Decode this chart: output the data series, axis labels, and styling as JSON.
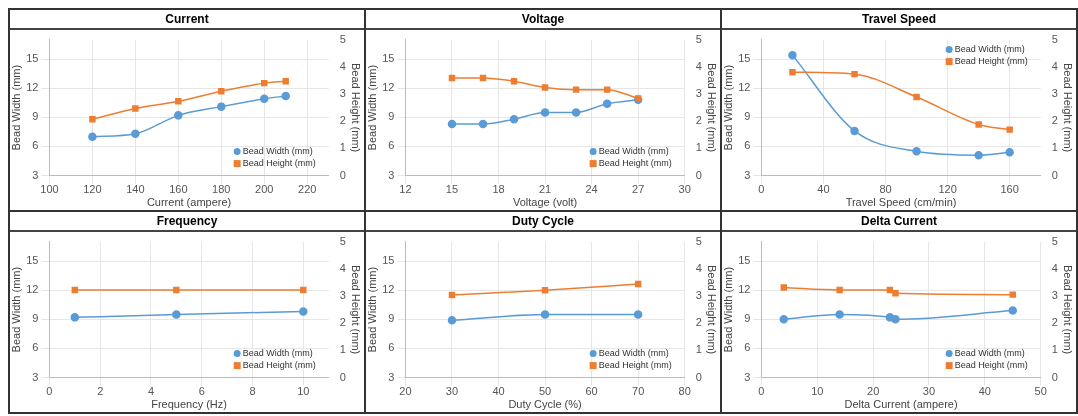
{
  "chart_data": [
    {
      "type": "line",
      "title": "Current",
      "xlabel": "Current (ampere)",
      "ylabel": "Bead Width (mm)",
      "y2label": "Bead Height (mm)",
      "x": [
        120,
        140,
        160,
        180,
        200,
        210
      ],
      "xlim": [
        100,
        230
      ],
      "xticks": [
        100,
        120,
        140,
        160,
        180,
        200,
        220
      ],
      "ylim": [
        3,
        17
      ],
      "yticks": [
        3,
        6,
        9,
        12,
        15
      ],
      "y2lim": [
        0,
        5
      ],
      "y2ticks": [
        0,
        1,
        2,
        3,
        4,
        5
      ],
      "grid": true,
      "legend": "bottom right",
      "series": [
        {
          "name": "Bead Width (mm)",
          "color": "#5b9bd5",
          "marker": "circle",
          "values": [
            7.0,
            7.3,
            9.2,
            10.1,
            10.9,
            11.2
          ]
        },
        {
          "name": "Bead Height (mm)",
          "color": "#ed7d31",
          "marker": "square",
          "axis": "y2",
          "values": [
            2.07,
            2.47,
            2.73,
            3.1,
            3.4,
            3.47
          ]
        }
      ]
    },
    {
      "type": "line",
      "title": "Voltage",
      "xlabel": "Voltage (volt)",
      "ylabel": "Bead Width (mm)",
      "y2label": "Bead Height (mm)",
      "x": [
        15,
        17,
        19,
        21,
        23,
        25,
        27
      ],
      "xlim": [
        12,
        30
      ],
      "xticks": [
        12,
        15,
        18,
        21,
        24,
        27,
        30
      ],
      "ylim": [
        3,
        17
      ],
      "yticks": [
        3,
        6,
        9,
        12,
        15
      ],
      "y2lim": [
        0,
        5
      ],
      "y2ticks": [
        0,
        1,
        2,
        3,
        4,
        5
      ],
      "grid": true,
      "legend": "bottom right",
      "series": [
        {
          "name": "Bead Width (mm)",
          "color": "#5b9bd5",
          "marker": "circle",
          "values": [
            8.3,
            8.3,
            8.8,
            9.5,
            9.5,
            10.4,
            10.8
          ]
        },
        {
          "name": "Bead Height (mm)",
          "color": "#ed7d31",
          "marker": "square",
          "axis": "y2",
          "values": [
            3.59,
            3.59,
            3.47,
            3.24,
            3.16,
            3.16,
            2.84
          ]
        }
      ]
    },
    {
      "type": "line",
      "title": "Travel Speed",
      "xlabel": "Travel Speed (cm/min)",
      "ylabel": "Bead Width (mm)",
      "y2label": "Bead Height (mm)",
      "x": [
        20,
        60,
        100,
        140,
        160
      ],
      "xlim": [
        0,
        180
      ],
      "xticks": [
        0,
        40,
        80,
        120,
        160
      ],
      "ylim": [
        3,
        17
      ],
      "yticks": [
        3,
        6,
        9,
        12,
        15
      ],
      "y2lim": [
        0,
        5
      ],
      "y2ticks": [
        0,
        1,
        2,
        3,
        4,
        5
      ],
      "grid": true,
      "legend": "top right",
      "series": [
        {
          "name": "Bead Width (mm)",
          "color": "#5b9bd5",
          "marker": "circle",
          "values": [
            15.4,
            7.6,
            5.5,
            5.1,
            5.4
          ]
        },
        {
          "name": "Bead Height (mm)",
          "color": "#ed7d31",
          "marker": "square",
          "axis": "y2",
          "values": [
            3.8,
            3.73,
            2.89,
            1.88,
            1.69
          ]
        }
      ]
    },
    {
      "type": "line",
      "title": "Frequency",
      "xlabel": "Frequency (Hz)",
      "ylabel": "Bead Width (mm)",
      "y2label": "Bead Height (mm)",
      "x": [
        1,
        5,
        10
      ],
      "xlim": [
        0,
        11
      ],
      "xticks": [
        0,
        2,
        4,
        6,
        8,
        10
      ],
      "ylim": [
        3,
        17
      ],
      "yticks": [
        3,
        6,
        9,
        12,
        15
      ],
      "y2lim": [
        0,
        5
      ],
      "y2ticks": [
        0,
        1,
        2,
        3,
        4,
        5
      ],
      "grid": true,
      "legend": "bottom right",
      "series": [
        {
          "name": "Bead Width (mm)",
          "color": "#5b9bd5",
          "marker": "circle",
          "values": [
            9.2,
            9.5,
            9.8
          ]
        },
        {
          "name": "Bead Height (mm)",
          "color": "#ed7d31",
          "marker": "square",
          "axis": "y2",
          "values": [
            3.22,
            3.22,
            3.22
          ]
        }
      ]
    },
    {
      "type": "line",
      "title": "Duty Cycle",
      "xlabel": "Duty Cycle (%)",
      "ylabel": "Bead Width (mm)",
      "y2label": "Bead Height (mm)",
      "x": [
        30,
        50,
        70
      ],
      "xlim": [
        20,
        80
      ],
      "xticks": [
        20,
        30,
        40,
        50,
        60,
        70,
        80
      ],
      "ylim": [
        3,
        17
      ],
      "yticks": [
        3,
        6,
        9,
        12,
        15
      ],
      "y2lim": [
        0,
        5
      ],
      "y2ticks": [
        0,
        1,
        2,
        3,
        4,
        5
      ],
      "grid": true,
      "legend": "bottom right",
      "series": [
        {
          "name": "Bead Width (mm)",
          "color": "#5b9bd5",
          "marker": "circle",
          "values": [
            8.9,
            9.5,
            9.5
          ]
        },
        {
          "name": "Bead Height (mm)",
          "color": "#ed7d31",
          "marker": "square",
          "axis": "y2",
          "values": [
            3.04,
            3.21,
            3.44
          ]
        }
      ]
    },
    {
      "type": "line",
      "title": "Delta Current",
      "xlabel": "Delta Current (ampere)",
      "ylabel": "Bead Width (mm)",
      "y2label": "Bead Height (mm)",
      "x": [
        4,
        14,
        23,
        24,
        45
      ],
      "xlim": [
        0,
        50
      ],
      "xticks": [
        0,
        10,
        20,
        30,
        40,
        50
      ],
      "ylim": [
        3,
        17
      ],
      "yticks": [
        3,
        6,
        9,
        12,
        15
      ],
      "y2lim": [
        0,
        5
      ],
      "y2ticks": [
        0,
        1,
        2,
        3,
        4,
        5
      ],
      "grid": true,
      "legend": "bottom right",
      "series": [
        {
          "name": "Bead Width (mm)",
          "color": "#5b9bd5",
          "marker": "circle",
          "values": [
            9.0,
            9.5,
            9.2,
            9.0,
            9.9
          ]
        },
        {
          "name": "Bead Height (mm)",
          "color": "#ed7d31",
          "marker": "square",
          "axis": "y2",
          "values": [
            3.31,
            3.22,
            3.22,
            3.1,
            3.05
          ]
        }
      ]
    }
  ]
}
